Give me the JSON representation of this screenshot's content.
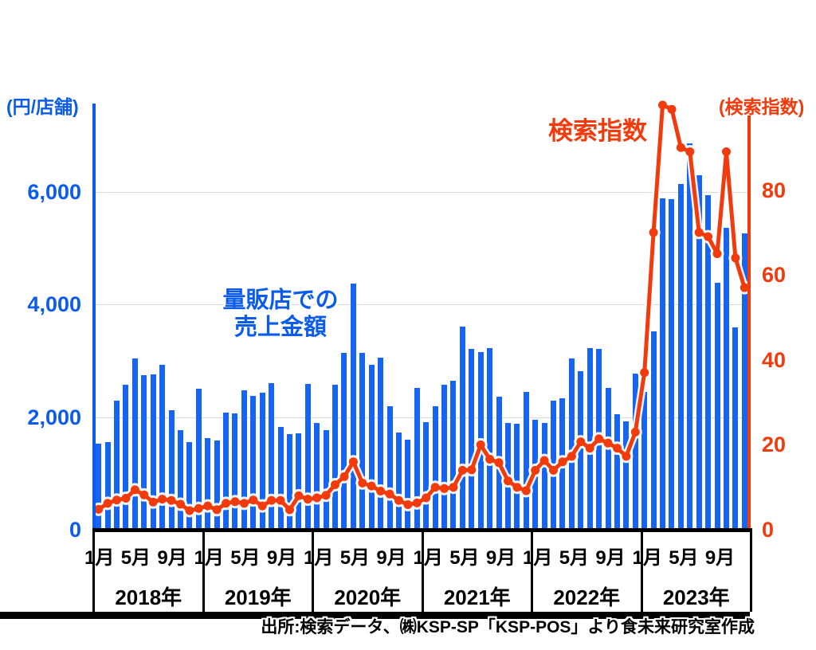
{
  "annotations": {
    "sales_line1": "量販店での",
    "sales_line2": "売上金額",
    "search": "検索指数"
  },
  "source": "出所:検索データ、㈱KSP-SP「KSP-POS」より食未来研究室作成",
  "colors": {
    "bar_blue": "#1565f2",
    "axis_blue": "#0b5ced",
    "line_red": "#f23b0d",
    "grid_gray": "#d9d9d9",
    "axis_black": "#000000"
  },
  "chart_data": {
    "type": "combo",
    "subtype": "monthly bars (left axis) + line (right axis), dual y-axis",
    "x": {
      "years": [
        "2018年",
        "2019年",
        "2020年",
        "2021年",
        "2022年",
        "2023年"
      ],
      "month_tick_labels": [
        "1月",
        "5月",
        "9月"
      ],
      "months_per_year": 12
    },
    "axes": {
      "left": {
        "label": "(円/店舗)",
        "min": 0,
        "max": 6000,
        "tick_values": [
          0,
          2000,
          4000,
          6000
        ],
        "tick_labels": [
          "0",
          "2,000",
          "4,000",
          "6,000"
        ],
        "color": "#0b5ced"
      },
      "right": {
        "label": "(検索指数)",
        "min": 0,
        "max": 80,
        "tick_values": [
          0,
          20,
          40,
          60,
          80
        ],
        "tick_labels": [
          "0",
          "20",
          "40",
          "60",
          "80"
        ],
        "color": "#f23b0d"
      }
    },
    "grid": "horizontal gridlines at 2000/4000/6000",
    "legend": "none (inline text annotations)",
    "series": [
      {
        "name": "量販店での売上金額",
        "type": "bar",
        "axis": "left",
        "unit": "円/店舗",
        "color": "#1565f2",
        "values": [
          1530,
          1560,
          2290,
          2570,
          3040,
          2740,
          2760,
          2930,
          2120,
          1770,
          1560,
          2500,
          1630,
          1580,
          2080,
          2060,
          2480,
          2380,
          2430,
          2600,
          1820,
          1700,
          1710,
          2590,
          1890,
          1770,
          2570,
          3140,
          4370,
          3140,
          2930,
          3060,
          2190,
          1720,
          1600,
          2520,
          1910,
          2190,
          2570,
          2640,
          3610,
          3210,
          3160,
          3230,
          2360,
          1890,
          1880,
          2450,
          1960,
          1890,
          2290,
          2340,
          3040,
          2810,
          3230,
          3210,
          2520,
          2050,
          1930,
          2780,
          2450,
          3520,
          5890,
          5870,
          6140,
          6870,
          6300,
          5950,
          4390,
          5360,
          3590,
          5270
        ]
      },
      {
        "name": "検索指数",
        "type": "line",
        "axis": "right",
        "color": "#f23b0d",
        "values": [
          4.8,
          6.2,
          7,
          7.4,
          9.4,
          8.2,
          6.5,
          7.2,
          6.9,
          6,
          4.5,
          5,
          5.6,
          4.7,
          6.2,
          6.6,
          6.2,
          7,
          5.6,
          6.9,
          6.9,
          4.7,
          8,
          7.2,
          7.5,
          8.1,
          10.6,
          12.5,
          16,
          11,
          10.3,
          9.1,
          8.4,
          6.9,
          5.9,
          6.3,
          7.5,
          10,
          9.7,
          10,
          14,
          14.1,
          20,
          16.6,
          15.8,
          11.5,
          10,
          9.2,
          14,
          16.3,
          14,
          16,
          17.3,
          20.7,
          19.2,
          21.4,
          20.4,
          19.2,
          17.3,
          23,
          37,
          70,
          100,
          99,
          90,
          89,
          70,
          69,
          65,
          89,
          64,
          57
        ]
      }
    ]
  }
}
